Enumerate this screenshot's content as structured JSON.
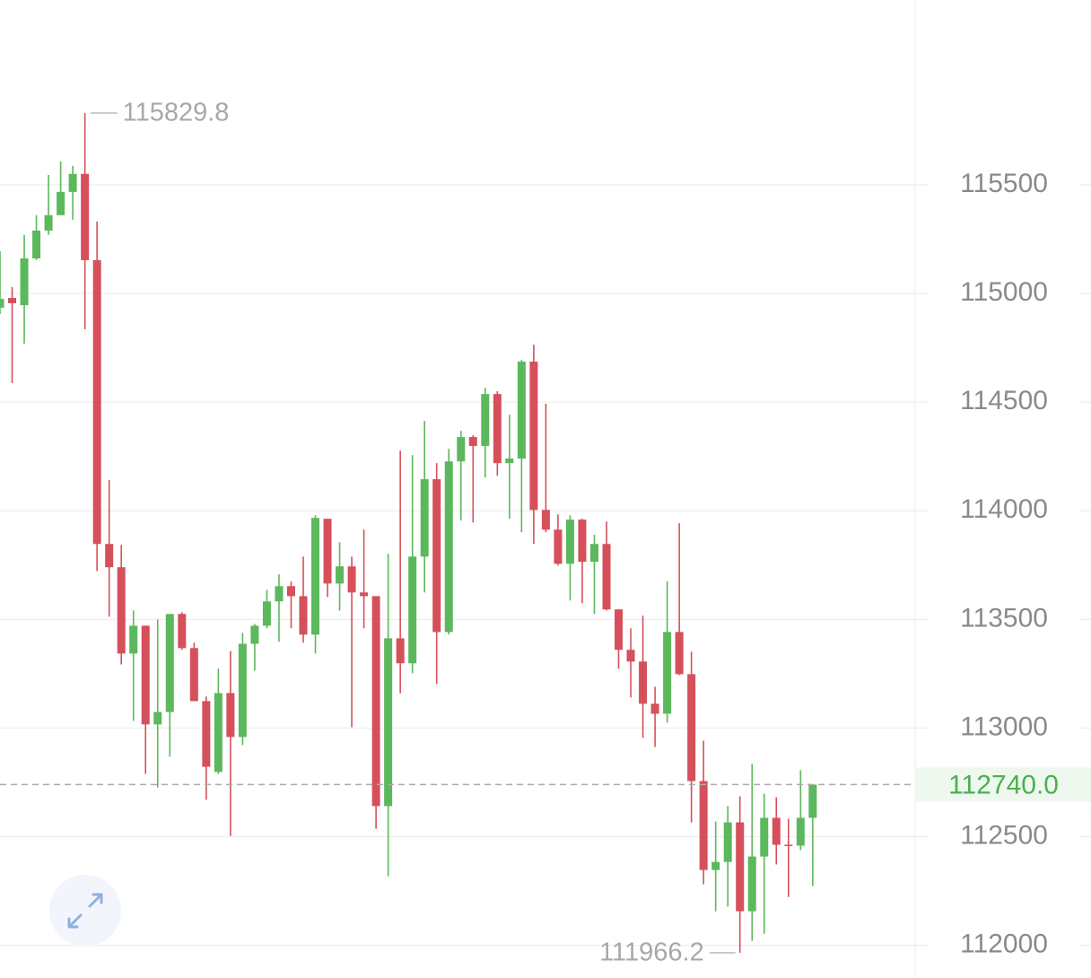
{
  "chart_data": {
    "type": "candlestick",
    "up_color": "#5cb85c",
    "down_color": "#d5505a",
    "ylim": [
      111850,
      116350
    ],
    "yticks": [
      112000,
      112500,
      113000,
      113500,
      114000,
      114500,
      115000,
      115500
    ],
    "grid": true,
    "open": [
      114934,
      114979,
      114946,
      115161,
      115289,
      115360,
      115467,
      115550,
      115153,
      113847,
      113740,
      113343,
      113471,
      113017,
      113074,
      113525,
      113368,
      113124,
      112798,
      113161,
      112959,
      113388,
      113471,
      113583,
      113653,
      113607,
      113430,
      113963,
      113665,
      113744,
      113624,
      113607,
      112641,
      113413,
      113298,
      113789,
      114145,
      113442,
      114227,
      114339,
      114298,
      114537,
      114219,
      114240,
      114686,
      114004,
      113913,
      113756,
      113959,
      113765,
      113847,
      113546,
      113360,
      113306,
      113112,
      113066,
      113442,
      113248,
      112756,
      112347,
      112384,
      112566,
      112157,
      112409,
      112587,
      112463,
      112459,
      112587
    ],
    "high": [
      115194,
      115029,
      115269,
      115360,
      115545,
      115607,
      115587,
      115829.8,
      115331,
      114141,
      113843,
      113541,
      113471,
      113500,
      113525,
      113533,
      113393,
      113145,
      113273,
      113355,
      113438,
      113479,
      113636,
      113707,
      113674,
      113789,
      113979,
      113963,
      113855,
      113789,
      113913,
      113607,
      113802,
      114277,
      114256,
      114413,
      114219,
      114285,
      114368,
      114347,
      114566,
      114550,
      114442,
      114694,
      114764,
      114492,
      113983,
      113979,
      113963,
      113889,
      113950,
      113546,
      113459,
      113517,
      113190,
      113674,
      113942,
      113351,
      112942,
      112570,
      112641,
      112686,
      112835,
      112698,
      112682,
      112583,
      112806,
      112740
    ],
    "low": [
      114905,
      114587,
      114769,
      115153,
      115269,
      115360,
      115339,
      114835,
      113723,
      113512,
      113293,
      113033,
      112789,
      112727,
      112868,
      113360,
      113124,
      112670,
      112789,
      112504,
      112922,
      113265,
      113459,
      113397,
      113459,
      113393,
      113343,
      113603,
      113541,
      113004,
      113459,
      112537,
      112318,
      113161,
      113252,
      113624,
      113203,
      113430,
      113955,
      113946,
      114153,
      114161,
      113963,
      113901,
      113847,
      113901,
      113748,
      113587,
      113574,
      113525,
      113541,
      113273,
      113141,
      112955,
      112913,
      113025,
      113244,
      112566,
      112281,
      112157,
      112178,
      111966.2,
      112021,
      112054,
      112372,
      112223,
      112438,
      112273
    ],
    "close": [
      114975,
      114955,
      115161,
      115289,
      115360,
      115467,
      115550,
      115153,
      113847,
      113740,
      113343,
      113471,
      113017,
      113074,
      113525,
      113368,
      113124,
      112822,
      113161,
      112959,
      113388,
      113471,
      113583,
      113653,
      113607,
      113430,
      113967,
      113665,
      113744,
      113624,
      113607,
      112641,
      113413,
      113298,
      113789,
      114145,
      113442,
      114227,
      114339,
      114298,
      114537,
      114219,
      114240,
      114686,
      114004,
      113913,
      113756,
      113959,
      113765,
      113847,
      113546,
      113360,
      113306,
      113112,
      113066,
      113442,
      113248,
      112756,
      112347,
      112384,
      112566,
      112157,
      112409,
      112587,
      112463,
      112459,
      112587,
      112740
    ],
    "last_price": {
      "value": 112740,
      "label": "112740.0"
    },
    "max_annotation": 115829.8,
    "min_annotation": 111966.2
  }
}
